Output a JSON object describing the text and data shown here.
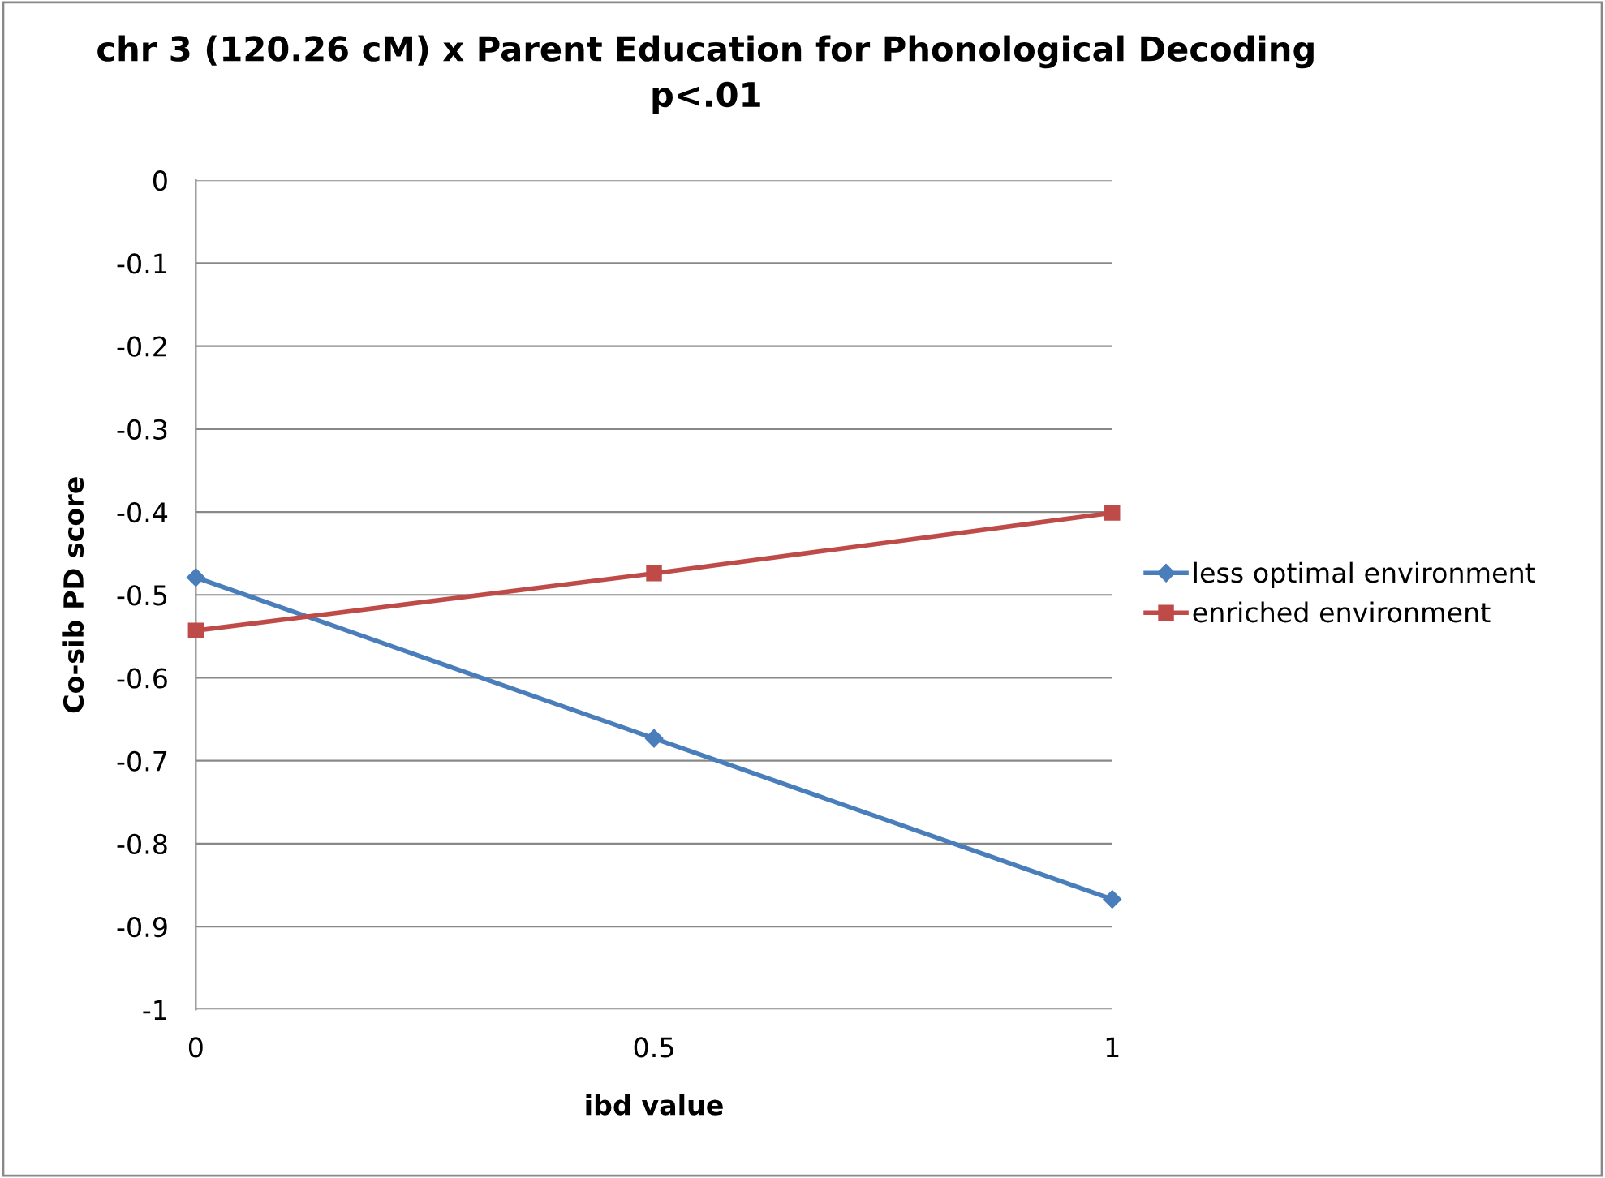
{
  "chart_data": {
    "type": "line",
    "title": "chr 3 (120.26 cM) x Parent Education for Phonological Decoding\np<.01",
    "xlabel": "ibd value",
    "ylabel": "Co-sib PD score",
    "x": [
      0,
      0.5,
      1
    ],
    "xlim": [
      0,
      1
    ],
    "xticks": [
      0,
      0.5,
      1
    ],
    "ylim": [
      -1,
      0
    ],
    "yticks": [
      -1,
      -0.9,
      -0.8,
      -0.7,
      -0.6,
      -0.5,
      -0.4,
      -0.3,
      -0.2,
      -0.1,
      0
    ],
    "grid": "y",
    "legend": "right",
    "line_style": "solid",
    "series": [
      {
        "name": "less optimal environment",
        "color": "#4a7ebb",
        "marker": "diamond",
        "values": [
          -0.479,
          -0.673,
          -0.867
        ]
      },
      {
        "name": "enriched environment",
        "color": "#be4b48",
        "marker": "square",
        "values": [
          -0.543,
          -0.474,
          -0.401
        ]
      }
    ]
  }
}
